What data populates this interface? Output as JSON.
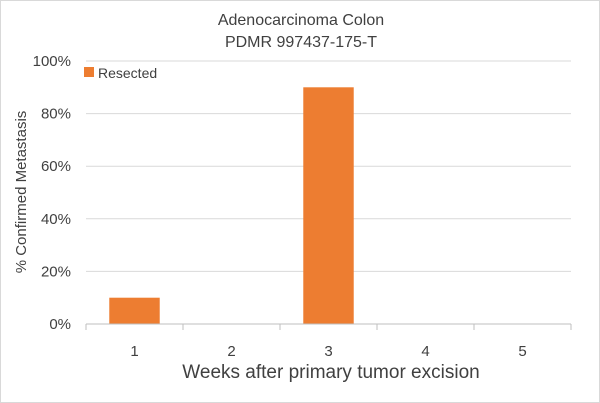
{
  "chart_data": {
    "type": "bar",
    "title": [
      "Adenocarcinoma Colon",
      "PDMR 997437-175-T"
    ],
    "xlabel": "Weeks after primary tumor excision",
    "ylabel": "% Confirmed Metastasis",
    "categories": [
      "1",
      "2",
      "3",
      "4",
      "5"
    ],
    "series": [
      {
        "name": "Resected",
        "values": [
          10,
          0,
          90,
          0,
          0
        ],
        "color": "#ed7d31"
      }
    ],
    "ylim": [
      0,
      100
    ],
    "yticks": [
      0,
      20,
      40,
      60,
      80,
      100
    ],
    "ytick_labels": [
      "0%",
      "20%",
      "40%",
      "60%",
      "80%",
      "100%"
    ],
    "grid": true,
    "legend_position": "top-left"
  }
}
